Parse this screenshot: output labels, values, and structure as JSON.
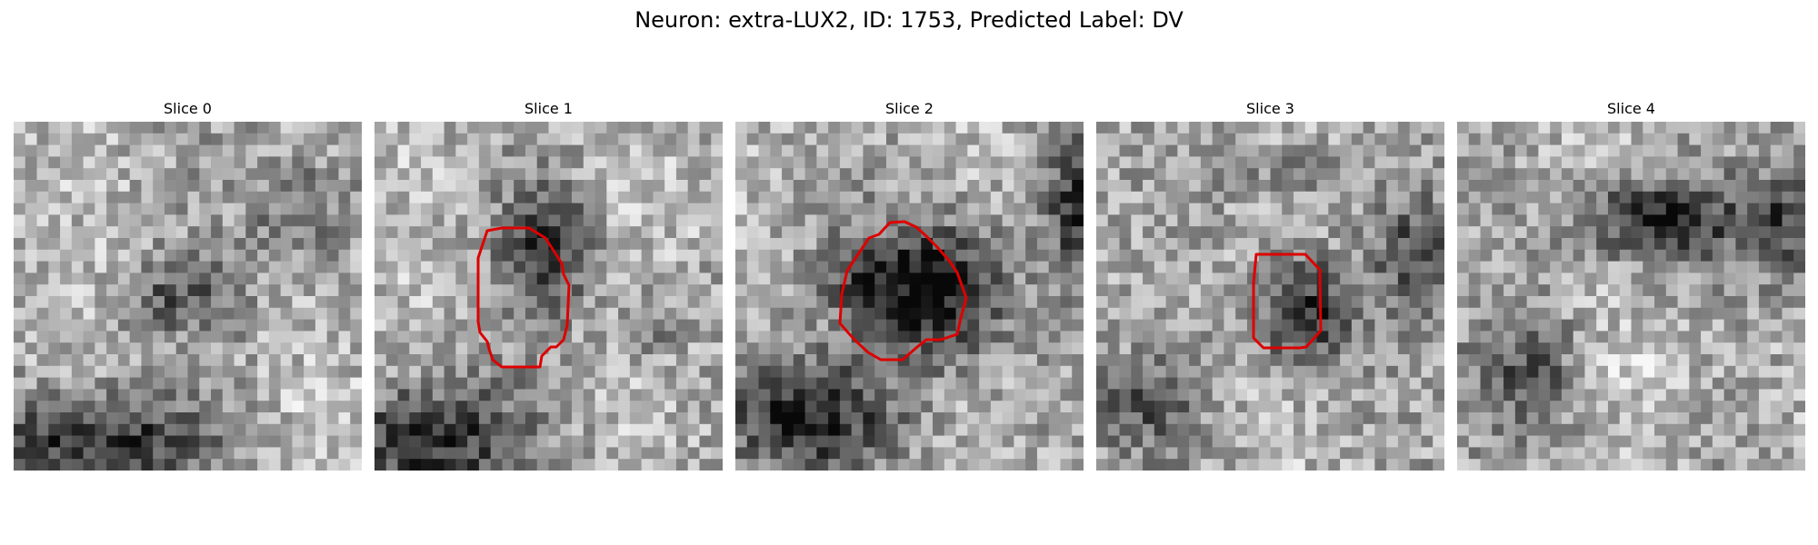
{
  "figure": {
    "title": "Neuron: extra-LUX2, ID: 1753, Predicted Label: DV"
  },
  "colors": {
    "contour": "#dd0000",
    "background": "#ffffff",
    "colormap": "grayscale"
  },
  "slices": [
    {
      "title": "Slice 0",
      "has_contour": false
    },
    {
      "title": "Slice 1",
      "has_contour": true
    },
    {
      "title": "Slice 2",
      "has_contour": true
    },
    {
      "title": "Slice 3",
      "has_contour": true
    },
    {
      "title": "Slice 4",
      "has_contour": false
    }
  ]
}
